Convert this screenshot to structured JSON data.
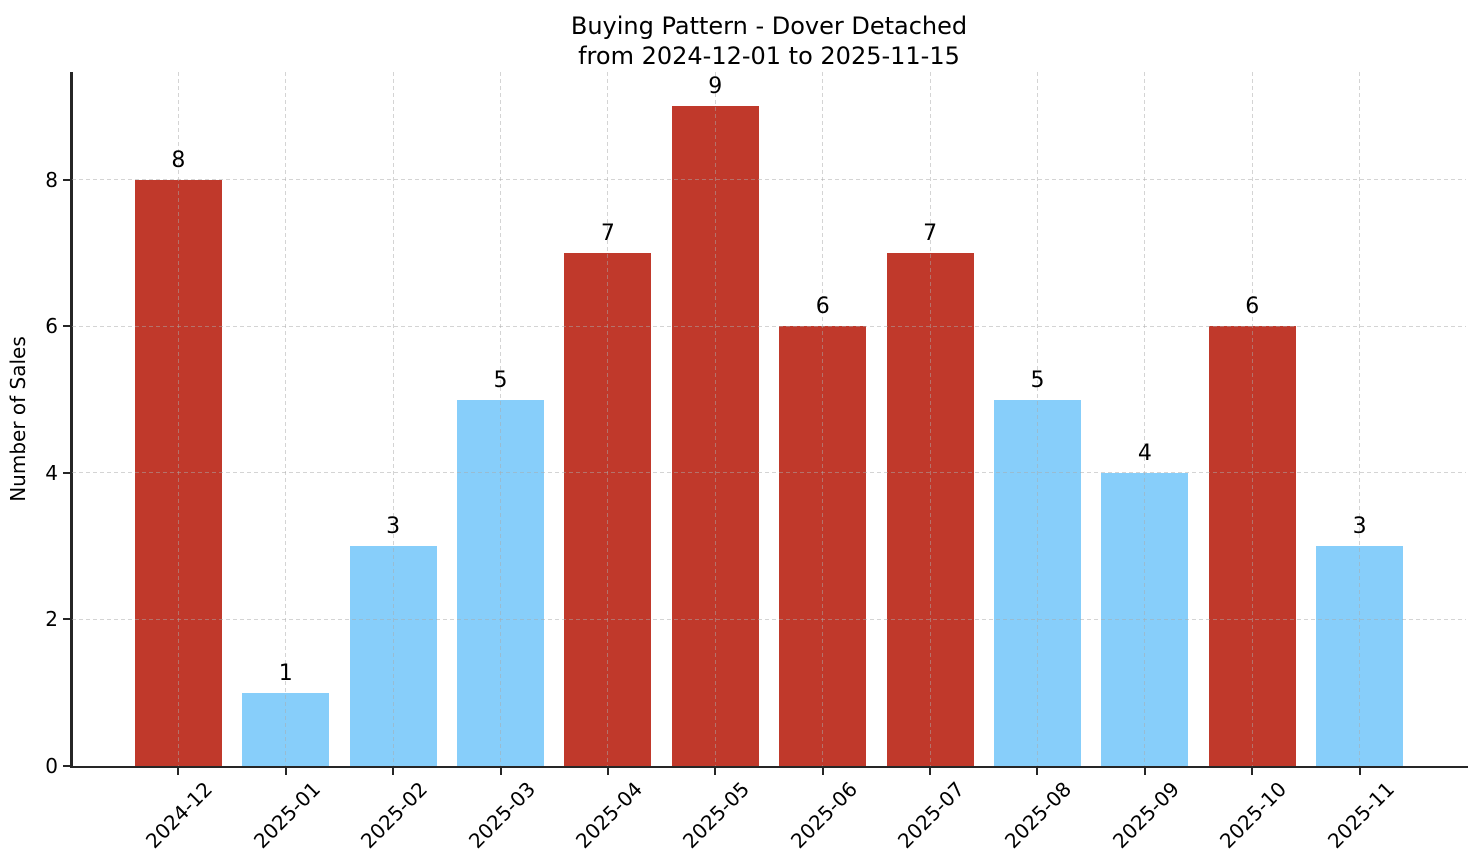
{
  "title": {
    "line1": "Buying Pattern - Dover Detached",
    "line2": "from 2024-12-01 to 2025-11-15"
  },
  "chart_data": {
    "type": "bar",
    "title": "Buying Pattern - Dover Detached\nfrom 2024-12-01 to 2025-11-15",
    "categories": [
      "2024-12",
      "2025-01",
      "2025-02",
      "2025-03",
      "2025-04",
      "2025-05",
      "2025-06",
      "2025-07",
      "2025-08",
      "2025-09",
      "2025-10",
      "2025-11"
    ],
    "values": [
      8,
      1,
      3,
      5,
      7,
      9,
      6,
      7,
      5,
      4,
      6,
      3
    ],
    "bar_colors": [
      "#C0392B",
      "#87CEFA",
      "#87CEFA",
      "#87CEFA",
      "#C0392B",
      "#C0392B",
      "#C0392B",
      "#C0392B",
      "#87CEFA",
      "#87CEFA",
      "#C0392B",
      "#87CEFA"
    ],
    "xlabel": "",
    "ylabel": "Number of Sales",
    "yticks": [
      0,
      2,
      4,
      6,
      8
    ],
    "ylim": [
      0,
      9.47
    ],
    "xlim": [
      -0.99,
      11.99
    ],
    "bar_width_units": 0.81,
    "grid": true,
    "grid_style": "dashed",
    "legend_position": "none",
    "value_labels_shown": true,
    "x_tick_rotation_deg": 45
  },
  "colors": {
    "bar_high": "#C0392B",
    "bar_low": "#87CEFA",
    "spine": "#262626",
    "grid": "#AAAAAA",
    "text": "#000000",
    "background": "#FFFFFF"
  }
}
